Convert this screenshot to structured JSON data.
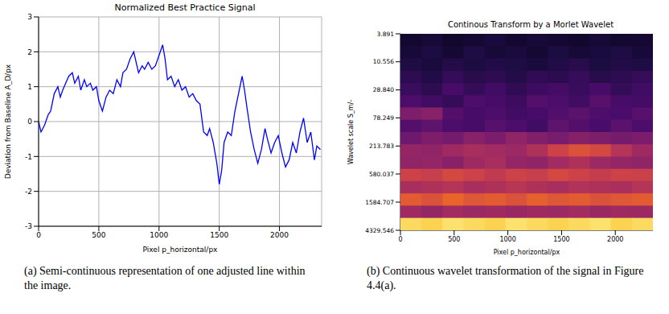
{
  "chart_data": [
    {
      "type": "line",
      "title": "Normalized Best Practice Signal",
      "x_label": "Pixel p_horizontal/px",
      "y_label": "Deviation from Baseline A_D/px",
      "caption": "(a) Semi-continuous representation of one adjusted line within the image.",
      "color": "#0000ff",
      "grid": true,
      "xlim": [
        0,
        2350
      ],
      "xticks": [
        0,
        500,
        1000,
        1500,
        2000
      ],
      "ylim": [
        -3,
        3
      ],
      "yticks": [
        -3,
        -2,
        -1,
        0,
        1,
        2,
        3
      ],
      "x": [
        0,
        20,
        50,
        80,
        100,
        130,
        160,
        180,
        200,
        250,
        280,
        300,
        330,
        350,
        380,
        400,
        430,
        450,
        480,
        500,
        530,
        560,
        590,
        620,
        650,
        680,
        700,
        730,
        760,
        790,
        810,
        830,
        860,
        880,
        910,
        940,
        970,
        1000,
        1030,
        1050,
        1070,
        1100,
        1130,
        1160,
        1190,
        1220,
        1250,
        1280,
        1310,
        1340,
        1370,
        1400,
        1420,
        1450,
        1480,
        1500,
        1520,
        1540,
        1570,
        1600,
        1630,
        1660,
        1690,
        1710,
        1730,
        1760,
        1790,
        1820,
        1850,
        1880,
        1900,
        1930,
        1960,
        1990,
        2020,
        2050,
        2080,
        2110,
        2140,
        2170,
        2200,
        2230,
        2260,
        2290,
        2310,
        2340
      ],
      "values": [
        0.0,
        -0.3,
        -0.1,
        0.2,
        0.3,
        0.8,
        1.0,
        0.7,
        0.9,
        1.3,
        1.4,
        1.1,
        1.3,
        0.9,
        1.2,
        1.0,
        1.1,
        0.9,
        1.0,
        0.6,
        0.3,
        0.7,
        0.9,
        0.8,
        1.2,
        1.0,
        1.4,
        1.5,
        1.8,
        2.0,
        1.7,
        1.4,
        1.6,
        1.5,
        1.7,
        1.5,
        1.6,
        1.9,
        2.2,
        1.8,
        1.2,
        1.3,
        1.0,
        1.2,
        0.9,
        1.0,
        0.7,
        0.8,
        0.6,
        0.5,
        -0.3,
        -0.4,
        -0.2,
        -0.6,
        -1.2,
        -1.8,
        -1.4,
        -0.6,
        -0.3,
        -0.4,
        0.3,
        0.8,
        1.3,
        0.9,
        0.4,
        -0.3,
        -0.8,
        -1.2,
        -0.8,
        -0.2,
        -0.5,
        -0.9,
        -0.6,
        -0.4,
        -0.9,
        -1.3,
        -1.1,
        -0.6,
        -0.9,
        -0.3,
        0.1,
        -0.6,
        -0.3,
        -1.1,
        -0.7,
        -0.8
      ]
    },
    {
      "type": "heatmap",
      "title": "Continous Transform by a Morlet Wavelet",
      "x_label": "Pixel p_horizontal/px",
      "y_label": "Wavelet scale S_m/-",
      "caption": "(b) Continuous wavelet transformation of the signal in Figure 4.4(a).",
      "grid": false,
      "log": "y",
      "xlim": [
        0,
        2350
      ],
      "xticks": [
        0,
        500,
        1000,
        1500,
        2000
      ],
      "ylim": [
        3.891,
        4329.546
      ],
      "yticks": [
        3.891,
        10.556,
        {
          "value": 28.84,
          "label": "28.840"
        },
        78.249,
        213.783,
        580.037,
        1584.707,
        4329.546
      ],
      "zlim": [
        0,
        1
      ],
      "x": [
        97.9,
        293.8,
        489.6,
        685.4,
        881.3,
        1077.1,
        1272.9,
        1468.8,
        1664.6,
        1860.4,
        2056.3,
        2252.1
      ],
      "y": [
        4.844,
        7.508,
        11.64,
        18.04,
        27.96,
        43.34,
        67.17,
        104.1,
        161.4,
        250.2,
        387.8,
        601.1,
        931.7,
        1444,
        2238,
        3469
      ],
      "values": [
        [
          0.1,
          0.12,
          0.09,
          0.11,
          0.13,
          0.1,
          0.12,
          0.11,
          0.09,
          0.12,
          0.1,
          0.11
        ],
        [
          0.12,
          0.14,
          0.11,
          0.15,
          0.12,
          0.13,
          0.11,
          0.14,
          0.12,
          0.13,
          0.15,
          0.12
        ],
        [
          0.15,
          0.13,
          0.17,
          0.14,
          0.16,
          0.15,
          0.13,
          0.16,
          0.18,
          0.14,
          0.16,
          0.15
        ],
        [
          0.2,
          0.16,
          0.22,
          0.18,
          0.2,
          0.17,
          0.21,
          0.19,
          0.23,
          0.18,
          0.2,
          0.22
        ],
        [
          0.24,
          0.2,
          0.28,
          0.22,
          0.26,
          0.21,
          0.25,
          0.27,
          0.24,
          0.28,
          0.22,
          0.26
        ],
        [
          0.3,
          0.26,
          0.22,
          0.3,
          0.28,
          0.25,
          0.32,
          0.3,
          0.26,
          0.33,
          0.28,
          0.27
        ],
        [
          0.45,
          0.48,
          0.32,
          0.28,
          0.3,
          0.26,
          0.28,
          0.31,
          0.34,
          0.3,
          0.29,
          0.33
        ],
        [
          0.32,
          0.35,
          0.3,
          0.28,
          0.33,
          0.3,
          0.26,
          0.35,
          0.32,
          0.29,
          0.34,
          0.3
        ],
        [
          0.4,
          0.45,
          0.42,
          0.48,
          0.44,
          0.5,
          0.46,
          0.43,
          0.47,
          0.45,
          0.42,
          0.44
        ],
        [
          0.52,
          0.5,
          0.55,
          0.58,
          0.56,
          0.54,
          0.6,
          0.7,
          0.74,
          0.72,
          0.62,
          0.55
        ],
        [
          0.5,
          0.52,
          0.48,
          0.55,
          0.58,
          0.52,
          0.5,
          0.56,
          0.6,
          0.54,
          0.52,
          0.5
        ],
        [
          0.7,
          0.68,
          0.72,
          0.7,
          0.66,
          0.7,
          0.68,
          0.72,
          0.7,
          0.67,
          0.7,
          0.69
        ],
        [
          0.58,
          0.6,
          0.62,
          0.58,
          0.6,
          0.63,
          0.6,
          0.58,
          0.61,
          0.6,
          0.59,
          0.62
        ],
        [
          0.76,
          0.74,
          0.78,
          0.75,
          0.76,
          0.74,
          0.77,
          0.75,
          0.76,
          0.74,
          0.75,
          0.76
        ],
        [
          0.55,
          0.52,
          0.56,
          0.54,
          0.55,
          0.53,
          0.55,
          0.54,
          0.56,
          0.53,
          0.55,
          0.54
        ],
        [
          0.95,
          0.94,
          0.96,
          0.95,
          0.94,
          0.96,
          0.95,
          0.94,
          0.95,
          0.96,
          0.94,
          0.95
        ]
      ]
    }
  ]
}
